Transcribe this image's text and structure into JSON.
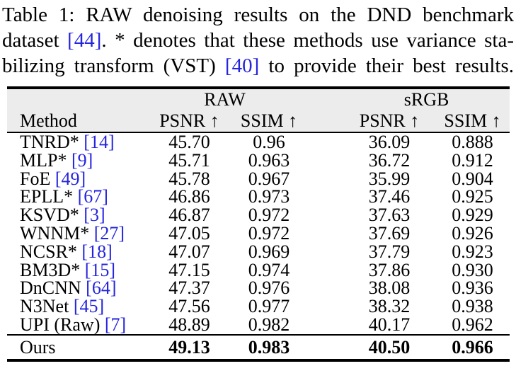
{
  "caption": {
    "lines": [
      {
        "segments": [
          {
            "text": "Table 1: RAW denoising results on the DND benchmark",
            "cite": false
          }
        ]
      },
      {
        "segments": [
          {
            "text": "dataset ",
            "cite": false
          },
          {
            "text": "[44]",
            "cite": true
          },
          {
            "text": ". * denotes that these methods use variance sta-",
            "cite": false
          }
        ]
      },
      {
        "segments": [
          {
            "text": "bilizing transform (VST) ",
            "cite": false
          },
          {
            "text": "[40]",
            "cite": true
          },
          {
            "text": " to provide their best results.",
            "cite": false
          }
        ]
      }
    ]
  },
  "table": {
    "groups": {
      "raw": "RAW",
      "srgb": "sRGB"
    },
    "headers": {
      "method": "Method",
      "raw_psnr": "PSNR ↑",
      "raw_ssim": "SSIM ↑",
      "srgb_psnr": "PSNR ↑",
      "srgb_ssim": "SSIM ↑"
    },
    "rows": [
      {
        "method": "TNRD*",
        "cite": "[14]",
        "raw_psnr": "45.70",
        "raw_ssim": "0.96",
        "srgb_psnr": "36.09",
        "srgb_ssim": "0.888"
      },
      {
        "method": "MLP*",
        "cite": "[9]",
        "raw_psnr": "45.71",
        "raw_ssim": "0.963",
        "srgb_psnr": "36.72",
        "srgb_ssim": "0.912"
      },
      {
        "method": "FoE",
        "cite": "[49]",
        "raw_psnr": "45.78",
        "raw_ssim": "0.967",
        "srgb_psnr": "35.99",
        "srgb_ssim": "0.904"
      },
      {
        "method": "EPLL*",
        "cite": "[67]",
        "raw_psnr": "46.86",
        "raw_ssim": "0.973",
        "srgb_psnr": "37.46",
        "srgb_ssim": "0.925"
      },
      {
        "method": "KSVD*",
        "cite": "[3]",
        "raw_psnr": "46.87",
        "raw_ssim": "0.972",
        "srgb_psnr": "37.63",
        "srgb_ssim": "0.929"
      },
      {
        "method": "WNNM*",
        "cite": "[27]",
        "raw_psnr": "47.05",
        "raw_ssim": "0.972",
        "srgb_psnr": "37.69",
        "srgb_ssim": "0.926"
      },
      {
        "method": "NCSR*",
        "cite": "[18]",
        "raw_psnr": "47.07",
        "raw_ssim": "0.969",
        "srgb_psnr": "37.79",
        "srgb_ssim": "0.923"
      },
      {
        "method": "BM3D*",
        "cite": "[15]",
        "raw_psnr": "47.15",
        "raw_ssim": "0.974",
        "srgb_psnr": "37.86",
        "srgb_ssim": "0.930"
      },
      {
        "method": "DnCNN",
        "cite": "[64]",
        "raw_psnr": "47.37",
        "raw_ssim": "0.976",
        "srgb_psnr": "38.08",
        "srgb_ssim": "0.936"
      },
      {
        "method": "N3Net",
        "cite": "[45]",
        "raw_psnr": "47.56",
        "raw_ssim": "0.977",
        "srgb_psnr": "38.32",
        "srgb_ssim": "0.938"
      },
      {
        "method": "UPI (Raw)",
        "cite": "[7]",
        "raw_psnr": "48.89",
        "raw_ssim": "0.982",
        "srgb_psnr": "40.17",
        "srgb_ssim": "0.962"
      }
    ],
    "ours": {
      "method": "Ours",
      "raw_psnr": "49.13",
      "raw_ssim": "0.983",
      "srgb_psnr": "40.50",
      "srgb_ssim": "0.966"
    }
  },
  "colors": {
    "citation_blue": "#2525dd",
    "header_bg": "#ececec",
    "text": "#000000",
    "rule_black": "#000000"
  }
}
